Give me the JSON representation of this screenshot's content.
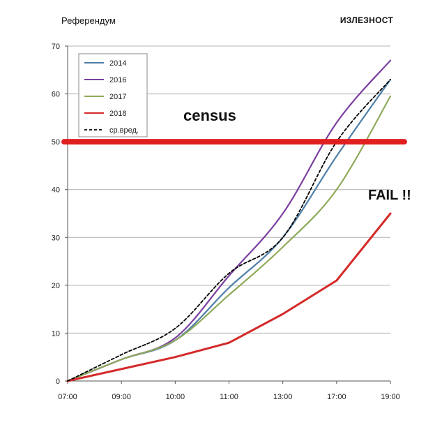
{
  "header": {
    "title_left": "Референдум",
    "title_right": "ИЗЛЕЗНОСТ"
  },
  "annotations": {
    "census_label": "census",
    "fail_label": "FAIL !!"
  },
  "colors": {
    "2014": "#4f7fa8",
    "2016": "#7b3fa0",
    "2017": "#8faa5a",
    "2018": "#d42a2a",
    "avg": "#000000",
    "census_line": "#e02020",
    "grid": "#b0b0b0"
  },
  "chart_data": {
    "type": "line",
    "categories": [
      "07:00",
      "09:00",
      "10:00",
      "11:00",
      "13:00",
      "17:00",
      "19:00"
    ],
    "y_ticks": [
      "0",
      "10",
      "20",
      "30",
      "40",
      "50",
      "60",
      "70"
    ],
    "ylim": [
      0,
      70
    ],
    "grid": true,
    "legend_position": "top-left",
    "census_threshold": 50,
    "series": [
      {
        "name": "2014",
        "key": "2014",
        "values": [
          0,
          4.5,
          8.5,
          19.5,
          30,
          47,
          63
        ]
      },
      {
        "name": "2016",
        "key": "2016",
        "values": [
          0,
          4.5,
          9,
          22,
          35,
          54,
          67
        ]
      },
      {
        "name": "2017",
        "key": "2017",
        "values": [
          0,
          4.5,
          8.5,
          18,
          28,
          40,
          59.5
        ]
      },
      {
        "name": "2018",
        "key": "2018",
        "values": [
          0,
          2.5,
          5,
          8,
          14,
          21,
          35
        ]
      },
      {
        "name": "ср.вред.",
        "key": "avg",
        "dashed": true,
        "values": [
          0,
          5.5,
          11,
          22.5,
          30,
          50,
          63
        ]
      }
    ]
  }
}
